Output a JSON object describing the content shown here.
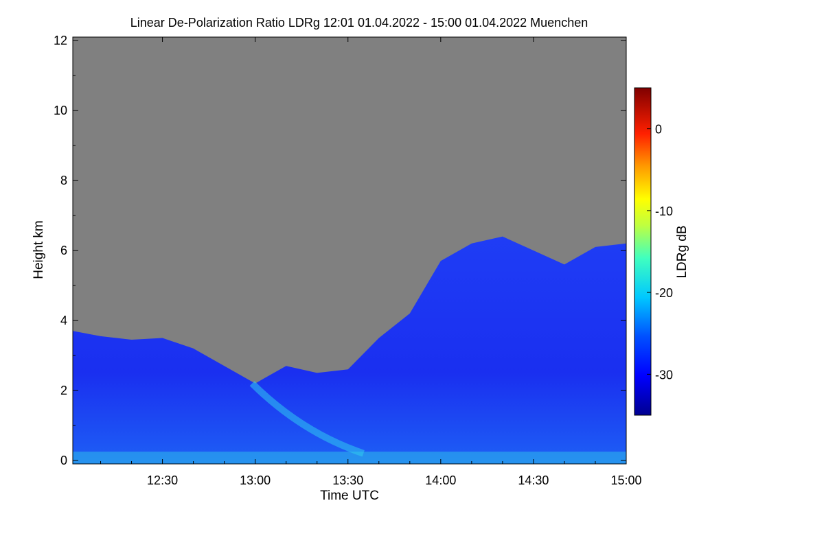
{
  "chart_data": {
    "type": "heatmap",
    "title": "Linear De-Polarization Ratio LDRg   12:01 01.04.2022 - 15:00 01.04.2022 Muenchen",
    "xlabel": "Time UTC",
    "ylabel": "Height km",
    "colorbar_label": "LDRg dB",
    "xlim_minutes_utc": [
      721,
      900
    ],
    "x_ticks": [
      {
        "label": "12:30",
        "minutes": 750
      },
      {
        "label": "13:00",
        "minutes": 780
      },
      {
        "label": "13:30",
        "minutes": 810
      },
      {
        "label": "14:00",
        "minutes": 840
      },
      {
        "label": "14:30",
        "minutes": 870
      },
      {
        "label": "15:00",
        "minutes": 900
      }
    ],
    "ylim": [
      -0.1,
      12.1
    ],
    "y_ticks": [
      "0",
      "2",
      "4",
      "6",
      "8",
      "10",
      "12"
    ],
    "colorbar_range": [
      -35,
      5
    ],
    "colorbar_ticks": [
      "0",
      "-10",
      "-20",
      "-30"
    ],
    "no_data_color": "#808080",
    "signal_top_km": [
      {
        "time": "12:01",
        "height": 3.7
      },
      {
        "time": "12:10",
        "height": 3.55
      },
      {
        "time": "12:20",
        "height": 3.45
      },
      {
        "time": "12:30",
        "height": 3.5
      },
      {
        "time": "12:40",
        "height": 3.2
      },
      {
        "time": "12:50",
        "height": 2.7
      },
      {
        "time": "13:00",
        "height": 2.2
      },
      {
        "time": "13:10",
        "height": 2.7
      },
      {
        "time": "13:20",
        "height": 2.5
      },
      {
        "time": "13:30",
        "height": 2.6
      },
      {
        "time": "13:40",
        "height": 3.5
      },
      {
        "time": "13:50",
        "height": 4.2
      },
      {
        "time": "14:00",
        "height": 5.7
      },
      {
        "time": "14:10",
        "height": 6.2
      },
      {
        "time": "14:20",
        "height": 6.4
      },
      {
        "time": "14:30",
        "height": 6.0
      },
      {
        "time": "14:40",
        "height": 5.6
      },
      {
        "time": "14:50",
        "height": 6.1
      },
      {
        "time": "15:00",
        "height": 6.2
      }
    ]
  }
}
